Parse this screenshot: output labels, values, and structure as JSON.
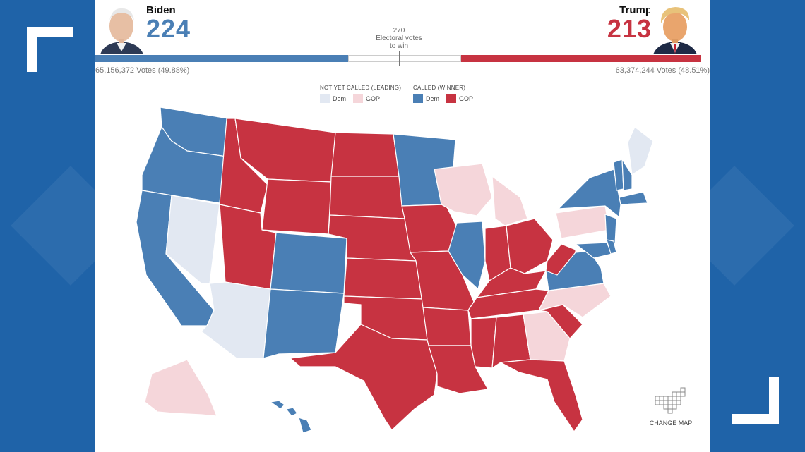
{
  "colors": {
    "dem_called": "#4a7fb5",
    "gop_called": "#c73341",
    "dem_leading": "#e2e8f2",
    "gop_leading": "#f5d6da",
    "frame_blue": "#1d5a9a"
  },
  "candidates": {
    "dem": {
      "name": "Biden",
      "electoral_votes": "224",
      "popular_votes": "65,156,372 Votes (49.88%)"
    },
    "gop": {
      "name": "Trump",
      "electoral_votes": "213",
      "popular_votes": "63,374,244 Votes (48.51%)"
    }
  },
  "threshold": {
    "number": "270",
    "line1": "Electoral votes",
    "line2": "to win"
  },
  "legend": {
    "not_called_title": "NOT YET CALLED (LEADING)",
    "called_title": "CALLED (WINNER)",
    "dem": "Dem",
    "gop": "GOP"
  },
  "change_map": {
    "label": "CHANGE MAP",
    "icon": "grid-map-icon"
  },
  "state_results": {
    "WA": "dem_called",
    "OR": "dem_called",
    "CA": "dem_called",
    "NV": "dem_leading",
    "ID": "gop_called",
    "MT": "gop_called",
    "WY": "gop_called",
    "UT": "gop_called",
    "AZ": "dem_leading",
    "CO": "dem_called",
    "NM": "dem_called",
    "ND": "gop_called",
    "SD": "gop_called",
    "NE": "gop_called",
    "KS": "gop_called",
    "OK": "gop_called",
    "TX": "gop_called",
    "MN": "dem_called",
    "IA": "gop_called",
    "MO": "gop_called",
    "AR": "gop_called",
    "LA": "gop_called",
    "WI": "gop_leading",
    "MI": "gop_leading",
    "IL": "dem_called",
    "IN": "gop_called",
    "OH": "gop_called",
    "KY": "gop_called",
    "TN": "gop_called",
    "MS": "gop_called",
    "AL": "gop_called",
    "GA": "gop_leading",
    "FL": "gop_called",
    "SC": "gop_called",
    "NC": "gop_leading",
    "VA": "dem_called",
    "WV": "gop_called",
    "PA": "gop_leading",
    "NY": "dem_called",
    "ME": "dem_leading",
    "VT": "dem_called",
    "NH": "dem_called",
    "MA": "dem_called",
    "NJ": "dem_called",
    "MD": "dem_called",
    "DE": "dem_called",
    "AK": "gop_leading",
    "HI": "dem_called"
  }
}
